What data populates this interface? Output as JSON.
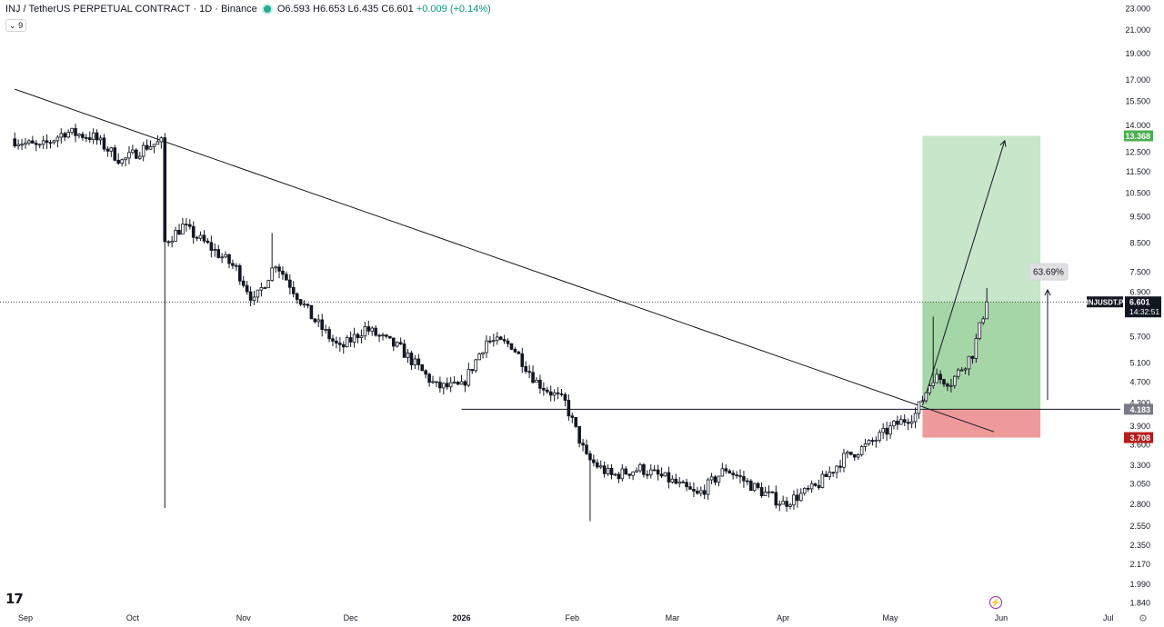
{
  "header": {
    "title": "INJ / TetherUS PERPETUAL CONTRACT · 1D · Binance",
    "open": "O6.593",
    "high": "H6.653",
    "low": "L6.435",
    "close": "C6.601",
    "change": "+0.009 (+0.14%)",
    "indicator_count": "9"
  },
  "price_label": {
    "symbol": "INJUSDT.P",
    "price": "6.601",
    "countdown": "14:32:51"
  },
  "position": {
    "target_label": "13.368",
    "entry_label": "4.183",
    "stop_label": "3.708",
    "move_label": "63.69%"
  },
  "colors": {
    "up_candle": "#ffffff",
    "down_candle": "#131722",
    "target_zone": "#c8e6c9",
    "target_zone_filled": "#a5d6a7",
    "stop_zone": "#ef9a9a",
    "target_badge": "#4caf50",
    "stop_badge": "#b71c1c",
    "entry_badge": "#787b86"
  },
  "icons": {
    "logo": "tradingview-logo-icon",
    "flash": "flash-icon",
    "settings": "gear-icon"
  },
  "chart_data": {
    "type": "candlestick",
    "title": "INJ / TetherUS PERPETUAL CONTRACT · 1D · Binance",
    "scale": "log",
    "y_ticks": [
      23.0,
      21.0,
      19.0,
      17.0,
      15.5,
      14.0,
      12.5,
      11.5,
      10.5,
      9.5,
      8.5,
      7.5,
      6.9,
      5.7,
      5.1,
      4.7,
      4.3,
      3.9,
      3.6,
      3.3,
      3.05,
      2.8,
      2.55,
      2.35,
      2.17,
      1.99,
      1.84
    ],
    "y_tick_labels": [
      "23.000",
      "21.000",
      "19.000",
      "17.000",
      "15.500",
      "14.000",
      "12.500",
      "11.500",
      "10.500",
      "9.500",
      "8.500",
      "7.500",
      "6.900",
      "5.700",
      "5.100",
      "4.700",
      "4.300",
      "3.900",
      "3.600",
      "3.300",
      "3.050",
      "2.800",
      "2.550",
      "2.350",
      "2.170",
      "1.990",
      "1.840"
    ],
    "x_labels": [
      "Sep",
      "Oct",
      "Nov",
      "Dec",
      "2026",
      "Feb",
      "Mar",
      "Apr",
      "May",
      "Jun",
      "Jul"
    ],
    "x_label_dates": [
      "2025-09-01",
      "2025-10-01",
      "2025-11-01",
      "2025-12-01",
      "2026-01-01",
      "2026-02-01",
      "2026-03-01",
      "2026-04-01",
      "2026-05-01",
      "2026-06-01",
      "2026-07-01"
    ],
    "grid": false,
    "start_date": "2025-08-28",
    "ohlc_anchor_closes": [
      [
        "2025-08-28",
        13.2
      ],
      [
        "2025-09-05",
        12.7
      ],
      [
        "2025-09-12",
        13.6
      ],
      [
        "2025-09-20",
        13.3
      ],
      [
        "2025-09-28",
        12.0
      ],
      [
        "2025-10-05",
        12.8
      ],
      [
        "2025-10-09",
        13.0
      ],
      [
        "2025-10-10",
        8.5
      ],
      [
        "2025-10-15",
        9.1
      ],
      [
        "2025-10-22",
        8.4
      ],
      [
        "2025-10-30",
        7.6
      ],
      [
        "2025-11-04",
        6.6
      ],
      [
        "2025-11-10",
        7.8
      ],
      [
        "2025-11-20",
        6.2
      ],
      [
        "2025-11-28",
        5.4
      ],
      [
        "2025-12-05",
        5.9
      ],
      [
        "2025-12-15",
        5.4
      ],
      [
        "2025-12-25",
        4.6
      ],
      [
        "2026-01-01",
        4.6
      ],
      [
        "2026-01-08",
        5.6
      ],
      [
        "2026-01-15",
        5.5
      ],
      [
        "2026-01-22",
        4.7
      ],
      [
        "2026-01-30",
        4.3
      ],
      [
        "2026-02-05",
        3.4
      ],
      [
        "2026-02-12",
        3.15
      ],
      [
        "2026-02-20",
        3.25
      ],
      [
        "2026-02-28",
        3.1
      ],
      [
        "2026-03-08",
        2.9
      ],
      [
        "2026-03-16",
        3.25
      ],
      [
        "2026-03-24",
        3.0
      ],
      [
        "2026-04-01",
        2.8
      ],
      [
        "2026-04-10",
        3.0
      ],
      [
        "2026-04-18",
        3.4
      ],
      [
        "2026-04-25",
        3.6
      ],
      [
        "2026-05-02",
        3.9
      ],
      [
        "2026-05-08",
        4.1
      ],
      [
        "2026-05-13",
        4.8
      ],
      [
        "2026-05-18",
        4.7
      ],
      [
        "2026-05-24",
        5.3
      ],
      [
        "2026-05-28",
        6.6
      ]
    ],
    "last_price": 6.601,
    "annotations": {
      "downtrend_line": [
        [
          "2025-08-29",
          16.3
        ],
        [
          "2026-05-30",
          3.8
        ]
      ],
      "horizontal_support": [
        [
          "2026-01-01",
          4.183
        ],
        [
          "2026-07-14",
          4.183
        ]
      ],
      "long_position": {
        "start": "2026-05-10",
        "end": "2026-06-12",
        "entry": 4.183,
        "target": 13.368,
        "stop": 3.708
      },
      "projection_arrow": [
        [
          "2026-05-10",
          4.25
        ],
        [
          "2026-06-02",
          13.1
        ]
      ],
      "move_arrow": [
        [
          "2026-06-14",
          4.35
        ],
        [
          "2026-06-14",
          6.95
        ]
      ]
    }
  }
}
